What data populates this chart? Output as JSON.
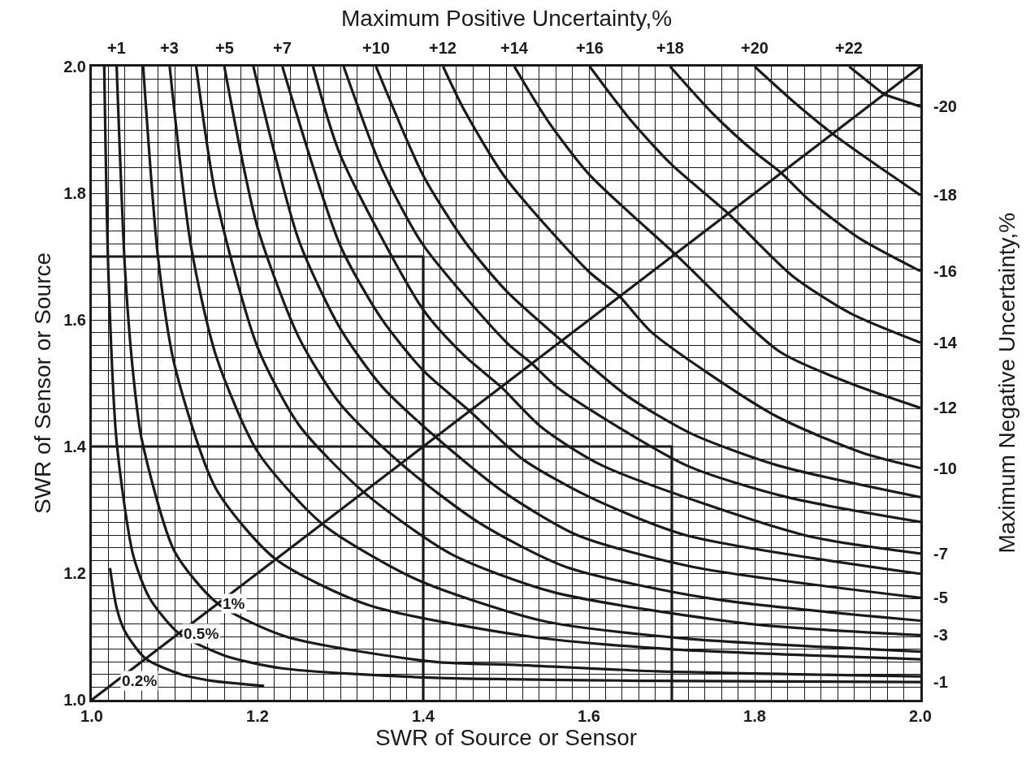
{
  "chart_data": {
    "type": "line",
    "xlabel": "SWR of Source or Sensor",
    "ylabel": "SWR of Sensor or Source",
    "x2label": "Maximum Positive Uncertainty,%",
    "y2label": "Maximum Negative Uncertainty,%",
    "xlim": [
      1.0,
      2.0
    ],
    "ylim": [
      1.0,
      2.0
    ],
    "xticks": [
      {
        "value": 1.0,
        "label": "1.0"
      },
      1.2,
      1.4,
      1.6,
      1.8,
      {
        "value": 2.0,
        "label": "2.0"
      }
    ],
    "yticks": [
      {
        "value": 1.0,
        "label": "1.0"
      },
      1.2,
      1.4,
      1.6,
      1.8,
      {
        "value": 2.0,
        "label": "2.0"
      }
    ],
    "grid": true,
    "marker": "none",
    "line_style": "solid",
    "annotations": [
      {
        "text": "+1",
        "x": 1.03,
        "y": 2.0
      },
      {
        "text": "+3",
        "x": 1.094,
        "y": 2.0
      },
      {
        "text": "+5",
        "x": 1.16,
        "y": 2.0
      },
      {
        "text": "+7",
        "x": 1.23,
        "y": 2.0
      },
      {
        "text": "+10",
        "x": 1.343,
        "y": 2.0
      },
      {
        "text": "+12",
        "x": 1.424,
        "y": 2.0
      },
      {
        "text": "+14",
        "x": 1.51,
        "y": 2.0
      },
      {
        "text": "+16",
        "x": 1.601,
        "y": 2.0
      },
      {
        "text": "+18",
        "x": 1.698,
        "y": 2.0
      },
      {
        "text": "+20",
        "x": 1.8,
        "y": 2.0
      },
      {
        "text": "+22",
        "x": 1.914,
        "y": 2.0
      },
      {
        "text": "-1",
        "x": 2.0,
        "y": 1.028
      },
      {
        "text": "-3",
        "x": 2.0,
        "y": 1.102
      },
      {
        "text": "-5",
        "x": 2.0,
        "y": 1.161
      },
      {
        "text": "-7",
        "x": 2.0,
        "y": 1.231
      },
      {
        "text": "-10",
        "x": 2.0,
        "y": 1.366
      },
      {
        "text": "-12",
        "x": 2.0,
        "y": 1.461
      },
      {
        "text": "-14",
        "x": 2.0,
        "y": 1.564
      },
      {
        "text": "-16",
        "x": 2.0,
        "y": 1.677
      },
      {
        "text": "-18",
        "x": 2.0,
        "y": 1.797
      },
      {
        "text": "-20",
        "x": 2.0,
        "y": 1.937
      },
      {
        "text": "1%",
        "x": 1.152,
        "y": 1.152
      },
      {
        "text": "0.5%",
        "x": 1.105,
        "y": 1.105
      },
      {
        "text": "0.2%",
        "x": 1.03,
        "y": 1.03
      }
    ],
    "series": [
      {
        "color": "#1a1a1a",
        "x": [
          1.03,
          1.04,
          1.05,
          1.06,
          1.1,
          1.152,
          1.234,
          1.413,
          1.514,
          1.682,
          2.0
        ],
        "values": [
          2.0,
          1.682,
          1.514,
          1.413,
          1.234,
          1.152,
          1.1,
          1.06,
          1.055,
          1.045,
          1.037
        ]
      },
      {
        "color": "#1a1a1a",
        "x": [
          1.062,
          1.08,
          1.1,
          1.15,
          1.222,
          1.333,
          1.528,
          1.698,
          2.0
        ],
        "values": [
          2.0,
          1.698,
          1.528,
          1.333,
          1.222,
          1.15,
          1.1,
          1.08,
          1.064
        ]
      },
      {
        "color": "#1a1a1a",
        "x": [
          1.094,
          1.12,
          1.15,
          1.2,
          1.278,
          1.392,
          1.543,
          1.714,
          2.0
        ],
        "values": [
          2.0,
          1.714,
          1.543,
          1.392,
          1.278,
          1.19,
          1.125,
          1.097,
          1.076
        ]
      },
      {
        "color": "#1a1a1a",
        "x": [
          1.126,
          1.15,
          1.2,
          1.25,
          1.328,
          1.434,
          1.557,
          1.793,
          2.0
        ],
        "values": [
          2.0,
          1.793,
          1.557,
          1.434,
          1.328,
          1.23,
          1.17,
          1.12,
          1.102
        ]
      },
      {
        "color": "#1a1a1a",
        "x": [
          1.16,
          1.2,
          1.25,
          1.3,
          1.373,
          1.467,
          1.572,
          1.746,
          2.0
        ],
        "values": [
          2.0,
          1.746,
          1.572,
          1.467,
          1.373,
          1.28,
          1.21,
          1.16,
          1.125
        ]
      },
      {
        "color": "#1a1a1a",
        "x": [
          1.195,
          1.25,
          1.3,
          1.35,
          1.415,
          1.495,
          1.586,
          1.725,
          2.0
        ],
        "values": [
          2.0,
          1.725,
          1.586,
          1.495,
          1.415,
          1.33,
          1.26,
          1.21,
          1.161
        ]
      },
      {
        "color": "#1a1a1a",
        "x": [
          1.23,
          1.3,
          1.35,
          1.4,
          1.456,
          1.52,
          1.601,
          1.717,
          2.0
        ],
        "values": [
          2.0,
          1.717,
          1.601,
          1.52,
          1.456,
          1.38,
          1.32,
          1.26,
          1.199
        ]
      },
      {
        "color": "#1a1a1a",
        "x": [
          1.267,
          1.3,
          1.4,
          1.45,
          1.494,
          1.543,
          1.616,
          1.86,
          2.0
        ],
        "values": [
          2.0,
          1.86,
          1.616,
          1.543,
          1.494,
          1.43,
          1.37,
          1.26,
          1.231
        ]
      },
      {
        "color": "#1a1a1a",
        "x": [
          1.304,
          1.35,
          1.4,
          1.5,
          1.531,
          1.565,
          1.718,
          1.839,
          2.0
        ],
        "values": [
          2.0,
          1.839,
          1.718,
          1.565,
          1.531,
          1.49,
          1.37,
          1.32,
          1.281
        ]
      },
      {
        "color": "#1a1a1a",
        "x": [
          1.343,
          1.4,
          1.45,
          1.5,
          1.567,
          1.646,
          1.724,
          1.828,
          2.0
        ],
        "values": [
          2.0,
          1.828,
          1.724,
          1.646,
          1.567,
          1.48,
          1.42,
          1.37,
          1.32
        ]
      },
      {
        "color": "#1a1a1a",
        "x": [
          1.424,
          1.45,
          1.5,
          1.6,
          1.637,
          1.676,
          1.823,
          1.93,
          2.0
        ],
        "values": [
          2.0,
          1.93,
          1.823,
          1.676,
          1.637,
          1.58,
          1.45,
          1.39,
          1.366
        ]
      },
      {
        "color": "#1a1a1a",
        "x": [
          1.51,
          1.55,
          1.6,
          1.704,
          1.83,
          1.915,
          2.0
        ],
        "values": [
          2.0,
          1.915,
          1.83,
          1.704,
          1.55,
          1.5,
          1.461
        ]
      },
      {
        "color": "#1a1a1a",
        "x": [
          1.601,
          1.65,
          1.7,
          1.768,
          1.845,
          1.916,
          2.0
        ],
        "values": [
          2.0,
          1.916,
          1.845,
          1.768,
          1.67,
          1.61,
          1.564
        ]
      },
      {
        "color": "#1a1a1a",
        "x": [
          1.698,
          1.75,
          1.8,
          1.832,
          1.865,
          1.925,
          2.0
        ],
        "values": [
          2.0,
          1.925,
          1.865,
          1.832,
          1.79,
          1.73,
          1.677
        ]
      },
      {
        "color": "#1a1a1a",
        "x": [
          1.8,
          1.85,
          1.894,
          1.941,
          2.0
        ],
        "values": [
          2.0,
          1.941,
          1.894,
          1.85,
          1.797
        ]
      },
      {
        "color": "#1a1a1a",
        "x": [
          1.914,
          1.956,
          2.0
        ],
        "values": [
          2.0,
          1.956,
          1.937
        ]
      },
      {
        "color": "#1a1a1a",
        "x": [
          1.015,
          1.02,
          1.03,
          1.05,
          1.07,
          1.105,
          1.16,
          1.228,
          1.407,
          1.676,
          2.0
        ],
        "values": [
          2.0,
          1.676,
          1.407,
          1.228,
          1.16,
          1.105,
          1.07,
          1.05,
          1.035,
          1.03,
          1.028
        ]
      },
      {
        "color": "#1a1a1a",
        "x": [
          1.022,
          1.03,
          1.04,
          1.065,
          1.108,
          1.145,
          1.208
        ],
        "values": [
          1.208,
          1.145,
          1.108,
          1.065,
          1.04,
          1.03,
          1.022
        ]
      },
      {
        "color": "#1a1a1a",
        "x": [
          1.0,
          2.0
        ],
        "values": [
          1.0,
          2.0
        ]
      },
      {
        "color": "#1a1a1a",
        "x": [
          1.0,
          1.4,
          1.4
        ],
        "values": [
          1.7,
          1.7,
          1.0
        ]
      },
      {
        "color": "#1a1a1a",
        "x": [
          1.0,
          1.7,
          1.7
        ],
        "values": [
          1.4,
          1.4,
          1.0
        ]
      }
    ]
  }
}
